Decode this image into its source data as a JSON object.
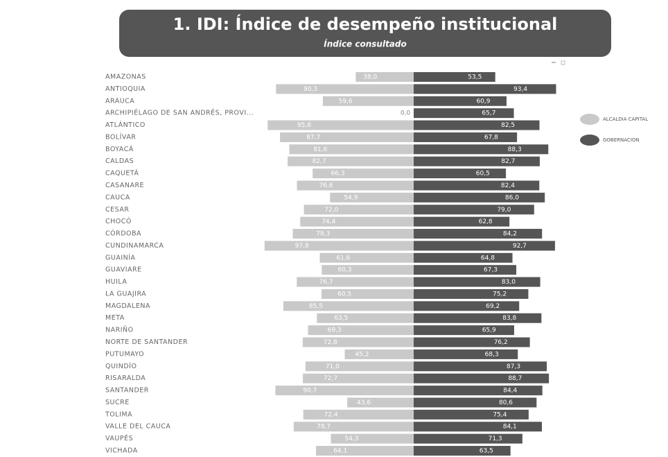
{
  "chart_data": {
    "type": "butterfly-bar",
    "title": "1. IDI: Índice de desempeño institucional",
    "subtitle": "Índice consultado",
    "categories": [
      "AMAZONAS",
      "ANTIOQUIA",
      "ARAUCA",
      "ARCHIPIÉLAGO DE SAN ANDRÉS, PROVI...",
      "ATLÁNTICO",
      "BOLÍVAR",
      "BOYACÁ",
      "CALDAS",
      "CAQUETÁ",
      "CASANARE",
      "CAUCA",
      "CESAR",
      "CHOCÓ",
      "CÓRDOBA",
      "CUNDINAMARCA",
      "GUAINÍA",
      "GUAVIARE",
      "HUILA",
      "LA GUAJIRA",
      "MAGDALENA",
      "META",
      "NARIÑO",
      "NORTE DE SANTANDER",
      "PUTUMAYO",
      "QUINDÍO",
      "RISARALDA",
      "SANTANDER",
      "SUCRE",
      "TOLIMA",
      "VALLE DEL CAUCA",
      "VAUPÉS",
      "VICHADA"
    ],
    "series": [
      {
        "name": "ALCALDIA CAPITAL",
        "color": "#c9c9c9",
        "values": [
          38.0,
          90.3,
          59.6,
          0.0,
          95.8,
          87.7,
          81.6,
          82.7,
          66.3,
          76.6,
          54.9,
          72.0,
          74.4,
          79.3,
          97.8,
          61.6,
          60.3,
          76.7,
          60.5,
          85.5,
          63.5,
          69.3,
          72.8,
          45.2,
          71.0,
          72.7,
          90.7,
          43.6,
          72.4,
          78.7,
          54.3,
          64.1
        ],
        "value_labels": [
          "38,0",
          "90,3",
          "59,6",
          "0,0",
          "95,8",
          "87,7",
          "81,6",
          "82,7",
          "66,3",
          "76,6",
          "54,9",
          "72,0",
          "74,4",
          "79,3",
          "97,8",
          "61,6",
          "60,3",
          "76,7",
          "60,5",
          "85,5",
          "63,5",
          "69,3",
          "72,8",
          "45,2",
          "71,0",
          "72,7",
          "90,7",
          "43,6",
          "72,4",
          "78,7",
          "54,3",
          "64,1"
        ]
      },
      {
        "name": "GOBERNACION",
        "color": "#555555",
        "values": [
          53.5,
          93.4,
          60.9,
          65.7,
          82.5,
          67.8,
          88.3,
          82.7,
          60.5,
          82.4,
          86.0,
          79.0,
          62.8,
          84.2,
          92.7,
          64.8,
          67.3,
          83.0,
          75.2,
          69.2,
          83.8,
          65.9,
          76.2,
          68.3,
          87.3,
          88.7,
          84.4,
          80.6,
          75.4,
          84.1,
          71.3,
          63.5
        ],
        "value_labels": [
          "53,5",
          "93,4",
          "60,9",
          "65,7",
          "82,5",
          "67,8",
          "88,3",
          "82,7",
          "60,5",
          "82,4",
          "86,0",
          "79,0",
          "62,8",
          "84,2",
          "92,7",
          "64,8",
          "67,3",
          "83,0",
          "75,2",
          "69,2",
          "83,8",
          "65,9",
          "76,2",
          "68,3",
          "87,3",
          "88,7",
          "84,4",
          "80,6",
          "75,4",
          "84,1",
          "71,3",
          "63,5"
        ]
      }
    ]
  }
}
